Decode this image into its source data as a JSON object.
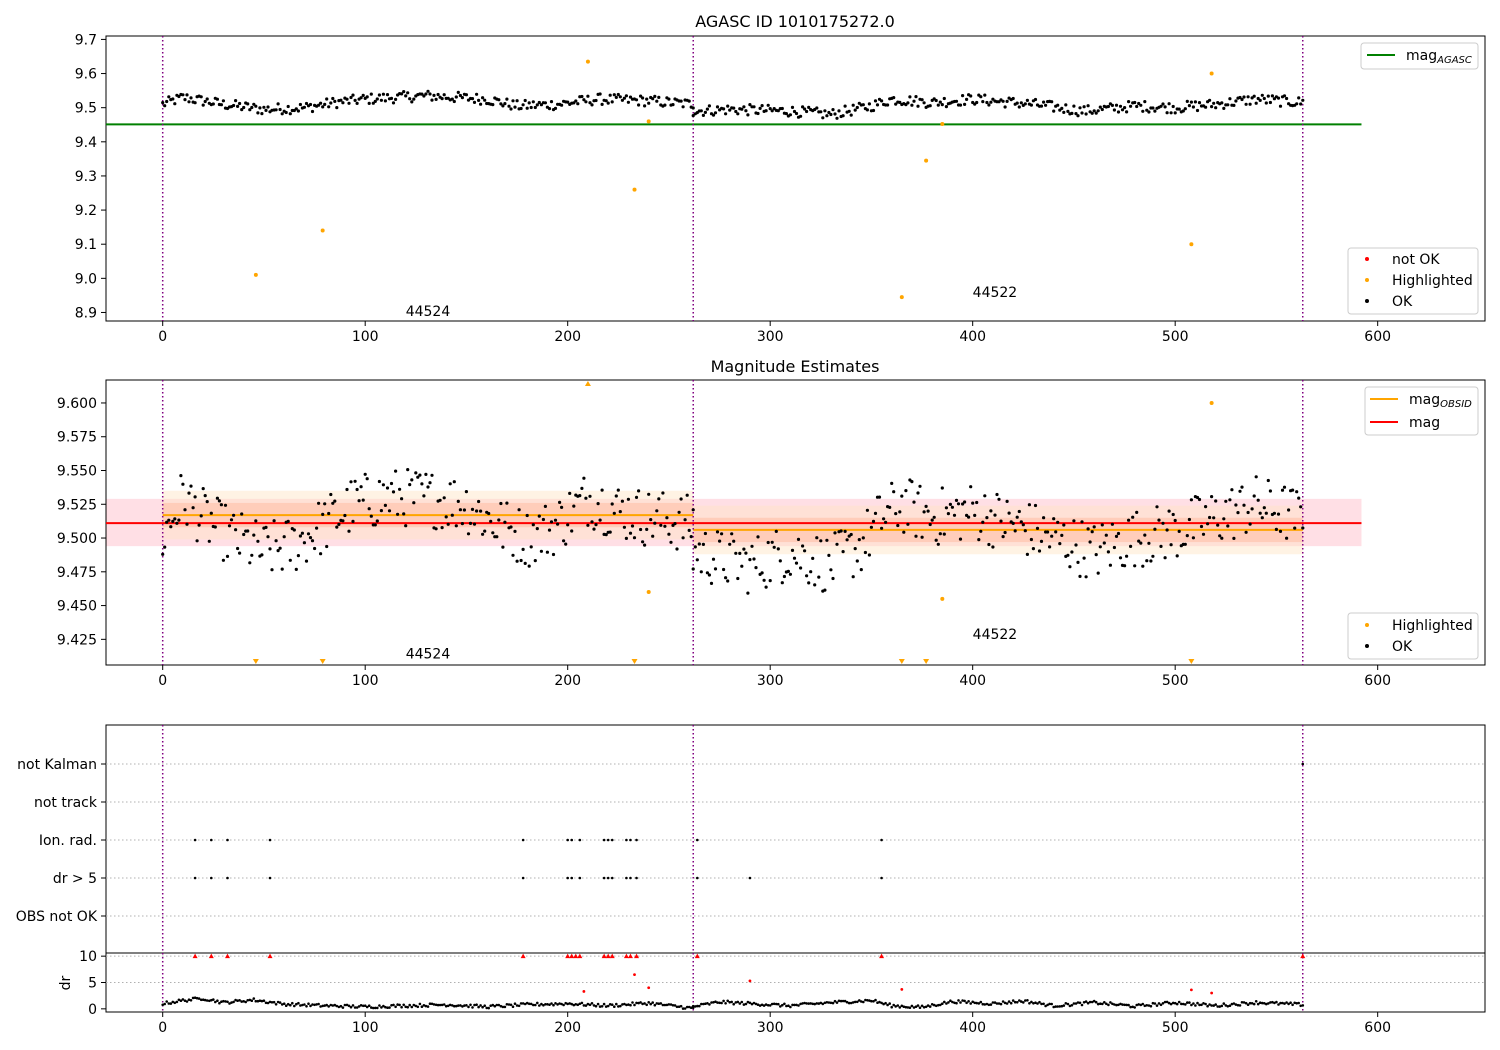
{
  "chart_data": [
    {
      "type": "scatter",
      "title": "AGASC ID 1010175272.0",
      "xlim": [
        -28,
        653
      ],
      "ylim": [
        8.875,
        9.71
      ],
      "xticks": [
        0,
        100,
        200,
        300,
        400,
        500,
        600
      ],
      "yticks": [
        8.9,
        9.0,
        9.1,
        9.2,
        9.3,
        9.4,
        9.5,
        9.6,
        9.7
      ],
      "ytick_decimals": 1,
      "vlines": [
        0,
        262,
        563
      ],
      "annotations": [
        {
          "x": 120,
          "y": 8.905,
          "text": "44524"
        },
        {
          "x": 400,
          "y": 8.96,
          "text": "44522"
        }
      ],
      "lines": [
        {
          "name": "mag_AGASC",
          "y": 9.451,
          "x_range": [
            -28,
            592
          ],
          "color": "#008000"
        }
      ],
      "legend_top": [
        {
          "label": "mag",
          "sub": "AGASC",
          "color": "#008000"
        }
      ],
      "legend_bottom": [
        {
          "label": "not OK",
          "color": "#ff0000"
        },
        {
          "label": "Highlighted",
          "color": "#ffa500"
        },
        {
          "label": "OK",
          "color": "#000000"
        }
      ],
      "highlighted": [
        [
          46,
          9.01
        ],
        [
          79,
          9.14
        ],
        [
          210,
          9.635
        ],
        [
          233,
          9.26
        ],
        [
          240,
          9.46
        ],
        [
          365,
          8.945
        ],
        [
          377,
          9.345
        ],
        [
          385,
          9.452
        ],
        [
          508,
          9.1
        ],
        [
          518,
          9.6
        ]
      ],
      "ok_segments": [
        {
          "x": [
            0,
            262
          ],
          "knots": [
            [
              0,
              9.51
            ],
            [
              10,
              9.53
            ],
            [
              30,
              9.51
            ],
            [
              50,
              9.495
            ],
            [
              70,
              9.5
            ],
            [
              85,
              9.515
            ],
            [
              100,
              9.525
            ],
            [
              130,
              9.535
            ],
            [
              160,
              9.525
            ],
            [
              175,
              9.505
            ],
            [
              195,
              9.51
            ],
            [
              215,
              9.525
            ],
            [
              240,
              9.52
            ],
            [
              262,
              9.51
            ]
          ]
        },
        {
          "x": [
            262,
            563
          ],
          "knots": [
            [
              262,
              9.49
            ],
            [
              280,
              9.495
            ],
            [
              310,
              9.49
            ],
            [
              330,
              9.48
            ],
            [
              350,
              9.505
            ],
            [
              360,
              9.525
            ],
            [
              380,
              9.515
            ],
            [
              400,
              9.525
            ],
            [
              430,
              9.51
            ],
            [
              455,
              9.49
            ],
            [
              480,
              9.505
            ],
            [
              500,
              9.5
            ],
            [
              520,
              9.51
            ],
            [
              540,
              9.525
            ],
            [
              563,
              9.515
            ]
          ]
        }
      ]
    },
    {
      "type": "scatter",
      "title": "Magnitude Estimates",
      "xlim": [
        -28,
        653
      ],
      "ylim": [
        9.406,
        9.617
      ],
      "xticks": [
        0,
        100,
        200,
        300,
        400,
        500,
        600
      ],
      "yticks": [
        9.425,
        9.45,
        9.475,
        9.5,
        9.525,
        9.55,
        9.575,
        9.6
      ],
      "ytick_decimals": 3,
      "vlines": [
        0,
        262,
        563
      ],
      "annotations": [
        {
          "x": 120,
          "y": 9.4145,
          "text": "44524"
        },
        {
          "x": 400,
          "y": 9.429,
          "text": "44522"
        }
      ],
      "bands": [
        {
          "x_range": [
            -28,
            592
          ],
          "y_range": [
            9.494,
            9.529
          ],
          "color": "#ffc0cb",
          "opacity": 0.5
        },
        {
          "x_range": [
            0,
            262
          ],
          "y_range": [
            9.499,
            9.535
          ],
          "color": "#ffe4c4",
          "opacity": 0.45
        },
        {
          "x_range": [
            262,
            563
          ],
          "y_range": [
            9.488,
            9.524
          ],
          "color": "#ffe4c4",
          "opacity": 0.45
        },
        {
          "x_range": [
            0,
            262
          ],
          "y_range": [
            9.508,
            9.526
          ],
          "color": "#ffa07a",
          "opacity": 0.3
        },
        {
          "x_range": [
            262,
            563
          ],
          "y_range": [
            9.497,
            9.515
          ],
          "color": "#ffa07a",
          "opacity": 0.3
        }
      ],
      "lines": [
        {
          "name": "mag",
          "y": 9.511,
          "x_range": [
            -28,
            592
          ],
          "color": "#ff0000"
        },
        {
          "name": "mag_OBSID",
          "y": 9.517,
          "x_range": [
            0,
            262
          ],
          "color": "#ffa500"
        },
        {
          "name": "mag_OBSID",
          "y": 9.506,
          "x_range": [
            262,
            563
          ],
          "color": "#ffa500"
        }
      ],
      "legend_top": [
        {
          "label": "mag",
          "sub": "OBSID",
          "color": "#ffa500"
        },
        {
          "label": "mag",
          "sub": "",
          "color": "#ff0000"
        }
      ],
      "legend_bottom": [
        {
          "label": "Highlighted",
          "color": "#ffa500"
        },
        {
          "label": "OK",
          "color": "#000000"
        }
      ],
      "highlighted": [
        [
          240,
          9.46
        ],
        [
          385,
          9.455
        ],
        [
          518,
          9.6
        ]
      ],
      "offscale_low": [
        46,
        79,
        233,
        365,
        377,
        508
      ],
      "offscale_high": [
        210
      ],
      "ok_segments": [
        {
          "x": [
            0,
            262
          ],
          "knots": [
            [
              0,
              9.5
            ],
            [
              10,
              9.53
            ],
            [
              20,
              9.515
            ],
            [
              35,
              9.5
            ],
            [
              50,
              9.49
            ],
            [
              65,
              9.495
            ],
            [
              80,
              9.51
            ],
            [
              95,
              9.525
            ],
            [
              110,
              9.53
            ],
            [
              130,
              9.53
            ],
            [
              150,
              9.525
            ],
            [
              165,
              9.51
            ],
            [
              180,
              9.5
            ],
            [
              195,
              9.51
            ],
            [
              210,
              9.53
            ],
            [
              225,
              9.52
            ],
            [
              240,
              9.515
            ],
            [
              262,
              9.51
            ]
          ]
        },
        {
          "x": [
            262,
            563
          ],
          "knots": [
            [
              262,
              9.49
            ],
            [
              275,
              9.485
            ],
            [
              290,
              9.48
            ],
            [
              310,
              9.49
            ],
            [
              330,
              9.48
            ],
            [
              345,
              9.495
            ],
            [
              355,
              9.515
            ],
            [
              365,
              9.525
            ],
            [
              380,
              9.515
            ],
            [
              400,
              9.52
            ],
            [
              420,
              9.51
            ],
            [
              440,
              9.5
            ],
            [
              460,
              9.49
            ],
            [
              480,
              9.5
            ],
            [
              500,
              9.505
            ],
            [
              520,
              9.515
            ],
            [
              540,
              9.525
            ],
            [
              563,
              9.515
            ]
          ]
        }
      ]
    },
    {
      "type": "scatter",
      "title": "",
      "xlim": [
        -28,
        653
      ],
      "vlines": [
        0,
        262,
        563
      ],
      "categories": [
        "not Kalman",
        "not track",
        "Ion. rad.",
        "dr > 5",
        "OBS not OK"
      ],
      "flags": {
        "not Kalman": [
          563
        ],
        "not track": [],
        "Ion. rad.": [
          16,
          24,
          32,
          53,
          178,
          200,
          202,
          206,
          218,
          220,
          222,
          229,
          231,
          234,
          264,
          355
        ],
        "dr > 5": [
          16,
          24,
          32,
          53,
          178,
          200,
          202,
          206,
          218,
          220,
          222,
          229,
          231,
          234,
          264,
          290,
          355
        ],
        "OBS not OK": []
      }
    },
    {
      "type": "scatter",
      "title": "",
      "ylabel": "dr",
      "xlim": [
        -28,
        653
      ],
      "ylim": [
        -0.6,
        10.6
      ],
      "xticks": [
        0,
        100,
        200,
        300,
        400,
        500,
        600
      ],
      "yticks": [
        0,
        5,
        10
      ],
      "vlines": [
        0,
        262,
        563
      ],
      "not_ok": [
        [
          16,
          10
        ],
        [
          24,
          10
        ],
        [
          32,
          10
        ],
        [
          53,
          10
        ],
        [
          178,
          10
        ],
        [
          200,
          10
        ],
        [
          202,
          10
        ],
        [
          204,
          10
        ],
        [
          206,
          10
        ],
        [
          218,
          10
        ],
        [
          220,
          10
        ],
        [
          222,
          10
        ],
        [
          229,
          10
        ],
        [
          231,
          10
        ],
        [
          234,
          10
        ],
        [
          264,
          10
        ],
        [
          355,
          10
        ],
        [
          563,
          10
        ],
        [
          208,
          3.3
        ],
        [
          233,
          6.5
        ],
        [
          240,
          4.0
        ],
        [
          290,
          5.3
        ],
        [
          365,
          3.7
        ],
        [
          508,
          3.6
        ],
        [
          518,
          3.0
        ]
      ],
      "ok_segments": [
        {
          "x": [
            0,
            262
          ],
          "knots": [
            [
              0,
              1.0
            ],
            [
              10,
              1.6
            ],
            [
              20,
              2.0
            ],
            [
              30,
              1.2
            ],
            [
              45,
              1.7
            ],
            [
              60,
              0.9
            ],
            [
              80,
              0.6
            ],
            [
              100,
              0.4
            ],
            [
              120,
              0.6
            ],
            [
              140,
              0.8
            ],
            [
              160,
              0.4
            ],
            [
              180,
              0.8
            ],
            [
              200,
              1.0
            ],
            [
              220,
              0.6
            ],
            [
              240,
              1.1
            ],
            [
              262,
              0.1
            ]
          ]
        },
        {
          "x": [
            262,
            563
          ],
          "knots": [
            [
              262,
              0.4
            ],
            [
              275,
              1.3
            ],
            [
              290,
              1.0
            ],
            [
              310,
              0.6
            ],
            [
              330,
              1.2
            ],
            [
              350,
              1.6
            ],
            [
              360,
              0.6
            ],
            [
              375,
              0.3
            ],
            [
              390,
              1.4
            ],
            [
              410,
              1.0
            ],
            [
              425,
              1.5
            ],
            [
              440,
              0.6
            ],
            [
              460,
              1.2
            ],
            [
              480,
              0.5
            ],
            [
              500,
              1.2
            ],
            [
              520,
              0.6
            ],
            [
              540,
              1.2
            ],
            [
              563,
              0.8
            ]
          ]
        }
      ]
    }
  ]
}
